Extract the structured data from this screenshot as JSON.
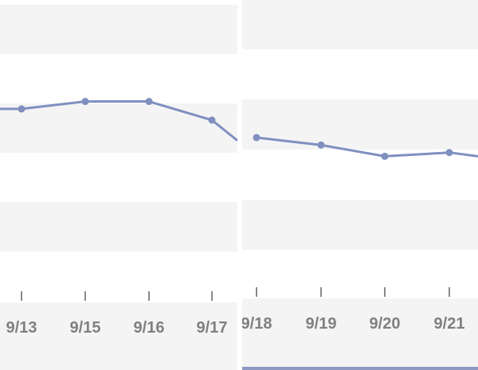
{
  "colors": {
    "line": "#7f8fbf",
    "band": "#f4f4f4",
    "background": "#ffffff",
    "tick": "#8a8a8a",
    "label": "#808080",
    "separator": "#ffffff",
    "accent_bar": "#8e99c3"
  },
  "chart_data": [
    {
      "type": "line",
      "title": "",
      "xlabel": "",
      "ylabel": "",
      "grid": true,
      "categories": [
        "",
        "9/13",
        "9/15",
        "9/16",
        "9/17",
        ""
      ],
      "series": [
        {
          "values": [
            5.2,
            5.2,
            5.4,
            5.4,
            4.9,
            4.35
          ]
        }
      ],
      "ylim": [
        0,
        8
      ]
    },
    {
      "type": "line",
      "title": "",
      "xlabel": "",
      "ylabel": "",
      "grid": true,
      "categories": [
        "9/18",
        "9/19",
        "9/20",
        "9/21",
        ""
      ],
      "series": [
        {
          "values": [
            4.3,
            4.1,
            3.8,
            3.9,
            3.8
          ]
        }
      ],
      "ylim": [
        0,
        8
      ]
    }
  ]
}
